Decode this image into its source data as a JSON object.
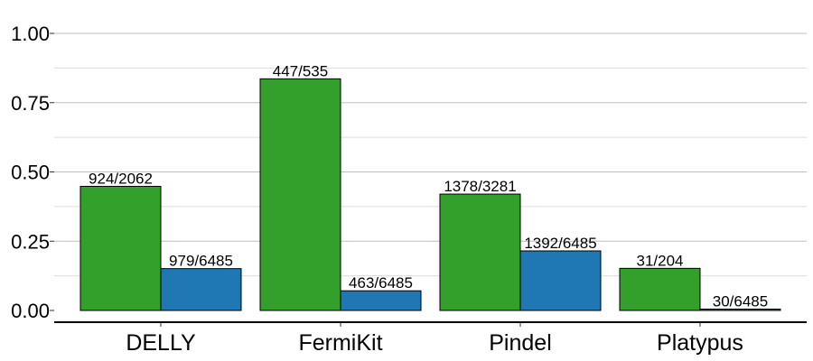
{
  "chart_data": {
    "type": "bar",
    "categories": [
      "DELLY",
      "FermiKit",
      "Pindel",
      "Platypus"
    ],
    "series": [
      {
        "color": "#33a02c",
        "values": [
          0.448,
          0.836,
          0.42,
          0.152
        ],
        "labels": [
          "924/2062",
          "447/535",
          "1378/3281",
          "31/204"
        ]
      },
      {
        "color": "#1f78b4",
        "values": [
          0.151,
          0.071,
          0.215,
          0.005
        ],
        "labels": [
          "979/6485",
          "463/6485",
          "1392/6485",
          "30/6485"
        ]
      }
    ],
    "yticks": [
      "0.00",
      "0.25",
      "0.50",
      "0.75",
      "1.00"
    ],
    "ylim": [
      0,
      1.0
    ],
    "grid": true,
    "legend": "none"
  }
}
